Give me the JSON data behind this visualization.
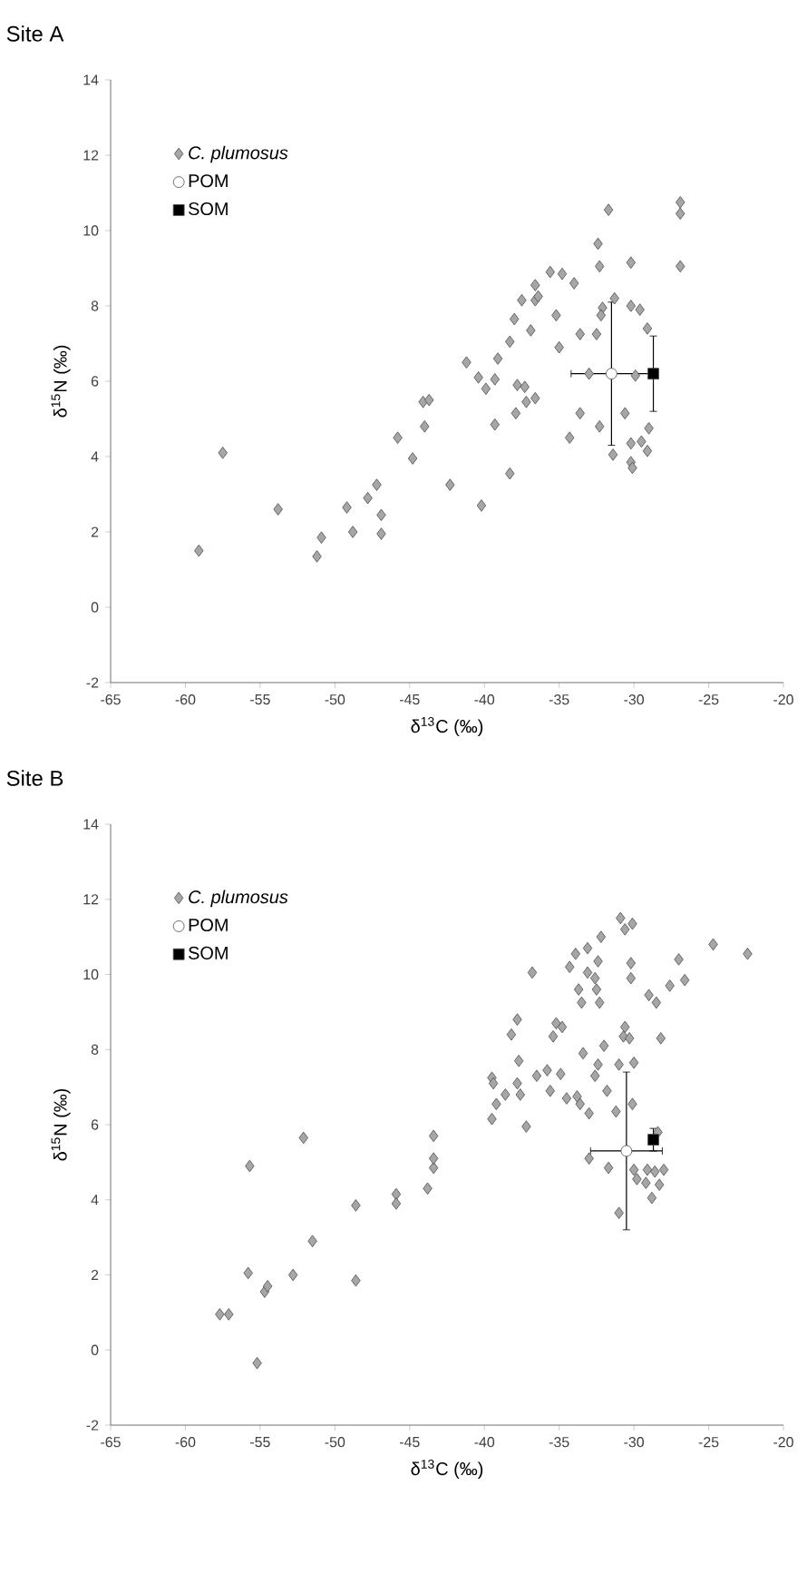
{
  "chart_data": [
    {
      "type": "scatter",
      "title": "Site A",
      "xlabel": "δ$^{13}$C (‰)",
      "ylabel": "δ$^{15}$N (‰)",
      "xlim": [
        -65,
        -20
      ],
      "ylim": [
        -2,
        14
      ],
      "xticks": [
        -65,
        -60,
        -55,
        -50,
        -45,
        -40,
        -35,
        -30,
        -25,
        -20
      ],
      "yticks": [
        -2,
        0,
        2,
        4,
        6,
        8,
        10,
        12,
        14
      ],
      "legend": "top left",
      "grid": false,
      "series": [
        {
          "name": "*C. plumosus*",
          "color": "#a6a6a6",
          "marker": "diamond",
          "x": [
            -59.1,
            -57.5,
            -53.8,
            -51.2,
            -50.9,
            -49.2,
            -48.8,
            -47.8,
            -47.2,
            -46.9,
            -46.9,
            -45.8,
            -44.8,
            -44.0,
            -44.1,
            -43.7,
            -42.3,
            -41.2,
            -40.2,
            -40.4,
            -39.9,
            -39.3,
            -39.1,
            -39.3,
            -38.3,
            -38.3,
            -37.9,
            -37.8,
            -37.3,
            -37.2,
            -36.9,
            -36.6,
            -35.0,
            -33.6,
            -33.0,
            -32.5,
            -34.3,
            -33.6,
            -32.3,
            -31.4,
            -30.6,
            -30.2,
            -30.1,
            -30.2,
            -29.9,
            -29.5,
            -29.1,
            -29.0,
            -38.0,
            -37.5,
            -36.6,
            -36.6,
            -36.4,
            -35.6,
            -35.2,
            -34.8,
            -34.0,
            -32.3,
            -32.4,
            -31.7,
            -32.1,
            -32.2,
            -31.3,
            -30.2,
            -30.2,
            -29.6,
            -29.1,
            -26.9,
            -26.9,
            -26.9
          ],
          "values": [
            1.5,
            4.1,
            2.6,
            1.35,
            1.85,
            2.65,
            2.0,
            2.9,
            3.25,
            2.45,
            1.95,
            4.5,
            3.95,
            4.8,
            5.45,
            5.5,
            3.25,
            6.5,
            2.7,
            6.1,
            5.8,
            6.05,
            6.6,
            4.85,
            7.05,
            3.55,
            5.15,
            5.9,
            5.85,
            5.45,
            7.35,
            5.55,
            6.9,
            7.25,
            6.2,
            7.25,
            4.5,
            5.15,
            4.8,
            4.05,
            5.15,
            3.85,
            3.7,
            4.35,
            6.15,
            4.4,
            4.15,
            4.75,
            7.65,
            8.15,
            8.15,
            8.55,
            8.25,
            8.9,
            7.75,
            8.85,
            8.6,
            9.05,
            9.65,
            10.55,
            7.95,
            7.75,
            8.2,
            8.0,
            9.15,
            7.9,
            7.4,
            10.75,
            10.45,
            9.05
          ]
        },
        {
          "name": "POM",
          "color": "#ffffff",
          "marker": "circle",
          "x": [
            -31.5
          ],
          "values": [
            6.2
          ],
          "errors": [
            1.9
          ],
          "xerrors": [
            2.7
          ]
        },
        {
          "name": "SOM",
          "color": "#000000",
          "marker": "square",
          "x": [
            -28.7
          ],
          "values": [
            6.2
          ],
          "errors": [
            1.0
          ]
        }
      ]
    },
    {
      "type": "scatter",
      "title": "Site B",
      "xlabel": "δ$^{13}$C (‰)",
      "ylabel": "δ$^{15}$N (‰)",
      "xlim": [
        -65,
        -20
      ],
      "ylim": [
        -2,
        14
      ],
      "xticks": [
        -65,
        -60,
        -55,
        -50,
        -45,
        -40,
        -35,
        -30,
        -25,
        -20
      ],
      "yticks": [
        -2,
        0,
        2,
        4,
        6,
        8,
        10,
        12,
        14
      ],
      "legend": "top left",
      "grid": false,
      "series": [
        {
          "name": "*C. plumosus*",
          "color": "#a6a6a6",
          "marker": "diamond",
          "x": [
            -52.1,
            -43.4,
            -36.8,
            -37.8,
            -38.2,
            -37.7,
            -39.5,
            -39.4,
            -39.2,
            -39.5,
            -38.6,
            -37.8,
            -37.6,
            -37.2,
            -36.5,
            -35.8,
            -35.6,
            -34.9,
            -35.2,
            -35.4,
            -34.8,
            -34.5,
            -33.8,
            -33.6,
            -33.0,
            -33.4,
            -34.3,
            -33.9,
            -33.1,
            -33.7,
            -33.5,
            -33.1,
            -32.6,
            -32.4,
            -32.2,
            -32.5,
            -32.3,
            -32.6,
            -32.4,
            -32.0,
            -31.8,
            -31.2,
            -30.9,
            -30.6,
            -30.1,
            -30.2,
            -30.2,
            -30.6,
            -30.7,
            -30.3,
            -31.0,
            -30.0,
            -30.1,
            -29.0,
            -28.5,
            -28.2,
            -27.6,
            -27.0,
            -26.6,
            -24.7,
            -22.4,
            -28.4,
            -55.7,
            -55.8,
            -57.7,
            -57.1,
            -55.2,
            -54.7,
            -54.5,
            -52.8,
            -51.5,
            -48.6,
            -48.6,
            -45.9,
            -45.9,
            -43.8,
            -43.4,
            -43.4,
            -33.0,
            -31.7,
            -31.0,
            -30.0,
            -29.8,
            -29.2,
            -29.1,
            -28.8,
            -28.6,
            -28.3,
            -28.0
          ],
          "values": [
            5.65,
            5.7,
            10.05,
            8.8,
            8.4,
            7.7,
            7.25,
            7.1,
            6.55,
            6.15,
            6.8,
            7.1,
            6.8,
            5.95,
            7.3,
            7.45,
            6.9,
            7.35,
            8.7,
            8.35,
            8.6,
            6.7,
            6.75,
            6.55,
            6.3,
            7.9,
            10.2,
            10.55,
            10.7,
            9.6,
            9.25,
            10.05,
            9.9,
            10.35,
            11.0,
            9.6,
            9.25,
            7.3,
            7.6,
            8.1,
            6.9,
            6.35,
            11.5,
            11.2,
            11.35,
            10.3,
            9.9,
            8.6,
            8.35,
            8.3,
            7.6,
            7.65,
            6.55,
            9.45,
            9.25,
            8.3,
            9.7,
            10.4,
            9.85,
            10.8,
            10.55,
            5.8,
            4.9,
            2.05,
            0.95,
            0.95,
            -0.35,
            1.55,
            1.7,
            2.0,
            2.9,
            3.85,
            1.85,
            4.15,
            3.9,
            4.3,
            4.85,
            5.1,
            5.1,
            4.85,
            3.65,
            4.8,
            4.55,
            4.45,
            4.8,
            4.05,
            4.75,
            4.4,
            4.8
          ]
        },
        {
          "name": "POM",
          "color": "#ffffff",
          "marker": "circle",
          "x": [
            -30.5
          ],
          "values": [
            5.3
          ],
          "errors": [
            2.1
          ],
          "xerrors": [
            2.4
          ]
        },
        {
          "name": "SOM",
          "color": "#000000",
          "marker": "square",
          "x": [
            -28.7
          ],
          "values": [
            5.6
          ],
          "errors": [
            0.3
          ]
        }
      ]
    }
  ]
}
